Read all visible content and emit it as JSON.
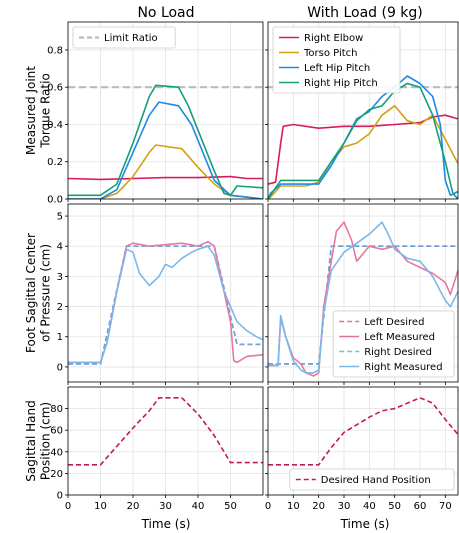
{
  "chart_data": {
    "type": "line",
    "columns": [
      {
        "key": "noload",
        "title": "No Load",
        "xlim": [
          0,
          60
        ],
        "xticks": [
          0,
          10,
          20,
          30,
          40,
          50
        ]
      },
      {
        "key": "load",
        "title": "With Load (9 kg)",
        "xlim": [
          0,
          75
        ],
        "xticks": [
          0,
          10,
          20,
          30,
          40,
          50,
          60,
          70
        ]
      }
    ],
    "xlabel": "Time (s)",
    "rows": [
      {
        "key": "torque",
        "ylabel": [
          "Measured Joint",
          "Torque Ratio"
        ],
        "ylim": [
          0,
          0.95
        ],
        "yticks": [
          0.0,
          0.2,
          0.4,
          0.6,
          0.8
        ],
        "ytick_labels": [
          "0.0",
          "0.2",
          "0.4",
          "0.6",
          "0.8"
        ],
        "legend_noload": [
          {
            "name": "Limit Ratio",
            "color": "#bbbbbb",
            "dash": true
          }
        ],
        "legend_load": [
          {
            "name": "Right Elbow",
            "color": "#d81b60"
          },
          {
            "name": "Torso Pitch",
            "color": "#d4a017"
          },
          {
            "name": "Left Hip Pitch",
            "color": "#1e88e5"
          },
          {
            "name": "Right Hip Pitch",
            "color": "#12a077"
          }
        ],
        "limit_ratio": 0.6,
        "series_noload": [
          {
            "name": "Right Elbow",
            "color": "#d81b60",
            "x": [
              0,
              10,
              20,
              30,
              40,
              50,
              55,
              60
            ],
            "y": [
              0.11,
              0.105,
              0.11,
              0.115,
              0.115,
              0.12,
              0.11,
              0.11
            ]
          },
          {
            "name": "Torso Pitch",
            "color": "#d4a017",
            "x": [
              0,
              10,
              15,
              20,
              25,
              27,
              35,
              40,
              45,
              50,
              60
            ],
            "y": [
              0.0,
              0.0,
              0.03,
              0.12,
              0.25,
              0.29,
              0.27,
              0.17,
              0.08,
              0.02,
              0.0
            ]
          },
          {
            "name": "Left Hip Pitch",
            "color": "#1e88e5",
            "x": [
              0,
              10,
              15,
              20,
              25,
              28,
              34,
              38,
              45,
              50,
              60
            ],
            "y": [
              0.0,
              0.0,
              0.05,
              0.25,
              0.45,
              0.52,
              0.5,
              0.4,
              0.1,
              0.02,
              0.0
            ]
          },
          {
            "name": "Right Hip Pitch",
            "color": "#12a077",
            "x": [
              0,
              10,
              15,
              20,
              25,
              27,
              34,
              37,
              45,
              48,
              50,
              52,
              60
            ],
            "y": [
              0.02,
              0.02,
              0.08,
              0.3,
              0.55,
              0.61,
              0.6,
              0.5,
              0.15,
              0.03,
              0.02,
              0.07,
              0.06
            ]
          }
        ],
        "series_load": [
          {
            "name": "Right Elbow",
            "color": "#d81b60",
            "x": [
              0,
              3,
              5,
              6,
              10,
              20,
              30,
              40,
              50,
              60,
              65,
              70,
              75
            ],
            "y": [
              0.08,
              0.09,
              0.3,
              0.39,
              0.4,
              0.38,
              0.39,
              0.39,
              0.4,
              0.41,
              0.44,
              0.45,
              0.43
            ]
          },
          {
            "name": "Torso Pitch",
            "color": "#d4a017",
            "x": [
              0,
              1,
              5,
              15,
              20,
              25,
              30,
              35,
              40,
              45,
              50,
              55,
              60,
              65,
              70,
              75
            ],
            "y": [
              0.0,
              0.01,
              0.07,
              0.07,
              0.09,
              0.2,
              0.28,
              0.3,
              0.35,
              0.45,
              0.5,
              0.42,
              0.4,
              0.45,
              0.32,
              0.19
            ]
          },
          {
            "name": "Left Hip Pitch",
            "color": "#1e88e5",
            "x": [
              0,
              1,
              5,
              20,
              25,
              30,
              35,
              40,
              45,
              50,
              55,
              60,
              65,
              68,
              70,
              72,
              75
            ],
            "y": [
              0.0,
              0.03,
              0.08,
              0.08,
              0.18,
              0.3,
              0.43,
              0.47,
              0.55,
              0.6,
              0.66,
              0.62,
              0.55,
              0.4,
              0.1,
              0.02,
              0.04
            ]
          },
          {
            "name": "Right Hip Pitch",
            "color": "#12a077",
            "x": [
              0,
              1,
              5,
              20,
              25,
              30,
              35,
              40,
              45,
              50,
              55,
              60,
              65,
              70,
              73,
              75
            ],
            "y": [
              0.0,
              0.02,
              0.1,
              0.1,
              0.2,
              0.3,
              0.42,
              0.48,
              0.5,
              0.58,
              0.62,
              0.6,
              0.45,
              0.2,
              0.03,
              0.0
            ]
          }
        ]
      },
      {
        "key": "cop",
        "ylabel": [
          "Foot Sagittal Center",
          "of Pressure (cm)"
        ],
        "ylim": [
          -0.5,
          5.4
        ],
        "yticks": [
          0,
          1,
          2,
          3,
          4,
          5
        ],
        "ytick_labels": [
          "0",
          "1",
          "2",
          "3",
          "4",
          "5"
        ],
        "legend_load": [
          {
            "name": "Left Desired",
            "color": "#e0709a",
            "dash": true
          },
          {
            "name": "Left Measured",
            "color": "#e0709a"
          },
          {
            "name": "Right Desired",
            "color": "#7ab8ea",
            "dash": true
          },
          {
            "name": "Right Measured",
            "color": "#7ab8ea"
          }
        ],
        "series_noload": [
          {
            "name": "Left Desired",
            "color": "#d66591",
            "dash": true,
            "x": [
              0,
              10,
              18,
              45,
              52,
              60
            ],
            "y": [
              0.1,
              0.1,
              4.0,
              4.0,
              0.75,
              0.75
            ]
          },
          {
            "name": "Right Desired",
            "color": "#6aa5dd",
            "dash": true,
            "x": [
              0,
              10,
              18,
              45,
              52,
              60
            ],
            "y": [
              0.1,
              0.1,
              4.0,
              4.0,
              0.75,
              0.75
            ]
          },
          {
            "name": "Left Measured",
            "color": "#e8789f",
            "x": [
              0,
              10,
              12,
              15,
              18,
              20,
              25,
              30,
              35,
              40,
              43,
              45,
              48,
              50,
              51,
              52,
              55,
              60
            ],
            "y": [
              0.15,
              0.15,
              0.8,
              2.5,
              4.0,
              4.1,
              4.0,
              4.05,
              4.1,
              4.0,
              4.15,
              4.0,
              2.5,
              1.5,
              0.2,
              0.15,
              0.35,
              0.4
            ]
          },
          {
            "name": "Right Measured",
            "color": "#7ab8ea",
            "x": [
              0,
              10,
              12,
              15,
              18,
              20,
              22,
              25,
              28,
              30,
              32,
              35,
              38,
              40,
              43,
              45,
              48,
              50,
              52,
              55,
              58,
              60
            ],
            "y": [
              0.15,
              0.15,
              0.8,
              2.5,
              3.9,
              3.8,
              3.1,
              2.7,
              3.0,
              3.4,
              3.3,
              3.6,
              3.8,
              3.9,
              4.0,
              3.7,
              2.5,
              2.0,
              1.5,
              1.2,
              1.0,
              0.9
            ]
          }
        ],
        "series_load": [
          {
            "name": "Left Desired",
            "color": "#d66591",
            "dash": true,
            "x": [
              0,
              5,
              10,
              20,
              25,
              75
            ],
            "y": [
              0.1,
              0.1,
              0.1,
              0.1,
              4.0,
              4.0
            ]
          },
          {
            "name": "Right Desired",
            "color": "#6aa5dd",
            "dash": true,
            "x": [
              0,
              5,
              10,
              20,
              25,
              75
            ],
            "y": [
              0.1,
              0.1,
              0.1,
              0.1,
              4.0,
              4.0
            ]
          },
          {
            "name": "Left Measured",
            "color": "#e8789f",
            "x": [
              0,
              4,
              5,
              7,
              10,
              13,
              15,
              18,
              20,
              22,
              25,
              27,
              30,
              33,
              35,
              40,
              45,
              50,
              55,
              60,
              65,
              70,
              72,
              75
            ],
            "y": [
              0.05,
              0.05,
              1.6,
              1.0,
              0.3,
              0.1,
              -0.2,
              -0.3,
              -0.2,
              2.0,
              3.5,
              4.5,
              4.8,
              4.2,
              3.5,
              4.0,
              3.9,
              4.0,
              3.5,
              3.3,
              3.1,
              2.8,
              2.4,
              3.2
            ]
          },
          {
            "name": "Right Measured",
            "color": "#7ab8ea",
            "x": [
              0,
              4,
              5,
              7,
              10,
              13,
              15,
              18,
              20,
              22,
              25,
              30,
              35,
              40,
              45,
              48,
              50,
              55,
              60,
              65,
              70,
              72,
              75
            ],
            "y": [
              0.05,
              0.05,
              1.7,
              1.0,
              0.2,
              -0.1,
              -0.2,
              -0.2,
              -0.1,
              1.8,
              3.2,
              3.8,
              4.1,
              4.4,
              4.8,
              4.3,
              3.9,
              3.6,
              3.5,
              3.0,
              2.2,
              2.0,
              2.5
            ]
          }
        ]
      },
      {
        "key": "hand",
        "ylabel": [
          "Sagittal Hand",
          "Position (cm)"
        ],
        "ylim": [
          0,
          100
        ],
        "yticks": [
          0,
          20,
          40,
          60,
          80
        ],
        "ytick_labels": [
          "0",
          "20",
          "40",
          "60",
          "80"
        ],
        "legend_load": [
          {
            "name": "Desired Hand Position",
            "color": "#c2185b",
            "dash": true
          }
        ],
        "series_noload": [
          {
            "name": "Desired Hand Position",
            "color": "#c2185b",
            "dash": true,
            "x": [
              0,
              10,
              15,
              20,
              25,
              28,
              35,
              40,
              45,
              50,
              60
            ],
            "y": [
              28,
              28,
              45,
              62,
              78,
              90,
              90,
              75,
              55,
              30,
              30
            ]
          }
        ],
        "series_load": [
          {
            "name": "Desired Hand Position",
            "color": "#c2185b",
            "dash": true,
            "x": [
              0,
              20,
              25,
              30,
              35,
              40,
              45,
              50,
              55,
              60,
              65,
              70,
              75
            ],
            "y": [
              28,
              28,
              44,
              58,
              65,
              72,
              78,
              80,
              85,
              90,
              85,
              70,
              56
            ]
          }
        ]
      }
    ]
  }
}
